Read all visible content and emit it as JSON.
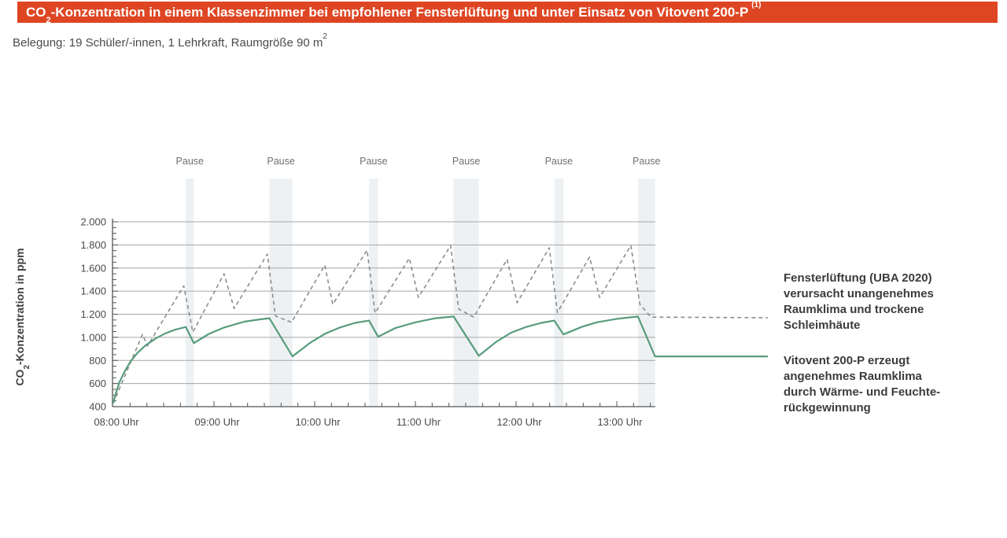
{
  "header": {
    "title_prefix": "CO",
    "title_subscript": "2",
    "title_text": "-Konzentration in einem Klassenzimmer bei empfohlener Fensterlüftung und unter Einsatz von Vitovent 200-P",
    "title_superscript": "(1)",
    "bar_color": "#de4623"
  },
  "subtitle": {
    "text": "Belegung: 19 Schüler/-innen, 1 Lehrkraft, Raumgröße 90 m",
    "superscript": "2"
  },
  "y_axis_title": {
    "prefix": "CO",
    "subscript": "2",
    "text": "-Konzentration in ppm"
  },
  "annotations": {
    "fensterlueftung": {
      "lines": [
        "Fensterlüftung (UBA 2020)",
        "verursacht unangenehmes",
        "Raumklima und trockene",
        "Schleimhäute"
      ]
    },
    "vitovent": {
      "lines": [
        "Vitovent 200-P erzeugt",
        "angenehmes Raumklima",
        "durch Wärme- und Feuchte-",
        "rückgewinnung"
      ]
    }
  },
  "chart_data": {
    "type": "line",
    "title": "CO2-Konzentration in einem Klassenzimmer bei empfohlener Fensterlüftung und unter Einsatz von Vitovent 200-P (1)",
    "subtitle": "Belegung: 19 Schüler/-innen, 1 Lehrkraft, Raumgröße 90 m2",
    "ylabel": "CO2-Konzentration in ppm",
    "x_unit": "hour_of_day",
    "xlim": [
      8.0,
      13.38
    ],
    "ylim": [
      400,
      2000
    ],
    "grid": true,
    "y_ticks": [
      400,
      600,
      800,
      1000,
      1200,
      1400,
      1600,
      1800,
      2000
    ],
    "y_tick_labels": [
      "400",
      "600",
      "800",
      "1.000",
      "1.200",
      "1.400",
      "1.600",
      "1.800",
      "2.000"
    ],
    "x_ticks": [
      {
        "h": 8,
        "label": "08:00 Uhr"
      },
      {
        "h": 9,
        "label": "09:00 Uhr"
      },
      {
        "h": 10,
        "label": "10:00 Uhr"
      },
      {
        "h": 11,
        "label": "11:00 Uhr"
      },
      {
        "h": 12,
        "label": "12:00 Uhr"
      },
      {
        "h": 13,
        "label": "13:00 Uhr"
      }
    ],
    "pause_label": "Pause",
    "pause_bands_hours": [
      [
        8.72,
        8.8
      ],
      [
        9.55,
        9.78
      ],
      [
        10.54,
        10.63
      ],
      [
        11.38,
        11.63
      ],
      [
        12.38,
        12.47
      ],
      [
        13.21,
        13.38
      ]
    ],
    "series": [
      {
        "name": "Fensterlüftung (UBA 2020)",
        "style": "dashed",
        "color": "#8c8c8c",
        "points": [
          [
            8.0,
            430
          ],
          [
            8.29,
            1025
          ],
          [
            8.34,
            925
          ],
          [
            8.7,
            1445
          ],
          [
            8.79,
            1045
          ],
          [
            9.1,
            1550
          ],
          [
            9.2,
            1250
          ],
          [
            9.53,
            1720
          ],
          [
            9.61,
            1185
          ],
          [
            9.77,
            1130
          ],
          [
            10.1,
            1625
          ],
          [
            10.18,
            1285
          ],
          [
            10.52,
            1755
          ],
          [
            10.6,
            1210
          ],
          [
            10.94,
            1685
          ],
          [
            11.03,
            1345
          ],
          [
            11.35,
            1795
          ],
          [
            11.43,
            1245
          ],
          [
            11.58,
            1175
          ],
          [
            11.91,
            1675
          ],
          [
            12.01,
            1300
          ],
          [
            12.33,
            1775
          ],
          [
            12.41,
            1215
          ],
          [
            12.73,
            1695
          ],
          [
            12.83,
            1345
          ],
          [
            13.14,
            1795
          ],
          [
            13.23,
            1285
          ],
          [
            13.34,
            1175
          ],
          [
            14.5,
            1170
          ]
        ]
      },
      {
        "name": "Vitovent 200-P",
        "style": "solid",
        "color": "#589c7c",
        "points": [
          [
            8.0,
            430
          ],
          [
            8.02,
            500
          ],
          [
            8.06,
            610
          ],
          [
            8.11,
            700
          ],
          [
            8.17,
            790
          ],
          [
            8.24,
            865
          ],
          [
            8.32,
            930
          ],
          [
            8.42,
            990
          ],
          [
            8.52,
            1035
          ],
          [
            8.62,
            1068
          ],
          [
            8.72,
            1090
          ],
          [
            8.8,
            950
          ],
          [
            8.95,
            1030
          ],
          [
            9.1,
            1085
          ],
          [
            9.3,
            1135
          ],
          [
            9.45,
            1155
          ],
          [
            9.55,
            1165
          ],
          [
            9.78,
            835
          ],
          [
            9.95,
            950
          ],
          [
            10.1,
            1030
          ],
          [
            10.25,
            1085
          ],
          [
            10.4,
            1125
          ],
          [
            10.54,
            1145
          ],
          [
            10.63,
            1005
          ],
          [
            10.8,
            1080
          ],
          [
            11.0,
            1130
          ],
          [
            11.2,
            1165
          ],
          [
            11.38,
            1180
          ],
          [
            11.63,
            840
          ],
          [
            11.8,
            960
          ],
          [
            11.95,
            1040
          ],
          [
            12.1,
            1090
          ],
          [
            12.25,
            1125
          ],
          [
            12.38,
            1145
          ],
          [
            12.47,
            1025
          ],
          [
            12.65,
            1090
          ],
          [
            12.8,
            1130
          ],
          [
            13.0,
            1160
          ],
          [
            13.21,
            1180
          ],
          [
            13.38,
            835
          ],
          [
            14.5,
            835
          ]
        ]
      }
    ],
    "colors": {
      "band_fill": "#eef1f3",
      "gridline": "#a6a6a6",
      "axis": "#555555",
      "tick_label": "#4a4a4a",
      "pause_label": "#707070"
    }
  }
}
